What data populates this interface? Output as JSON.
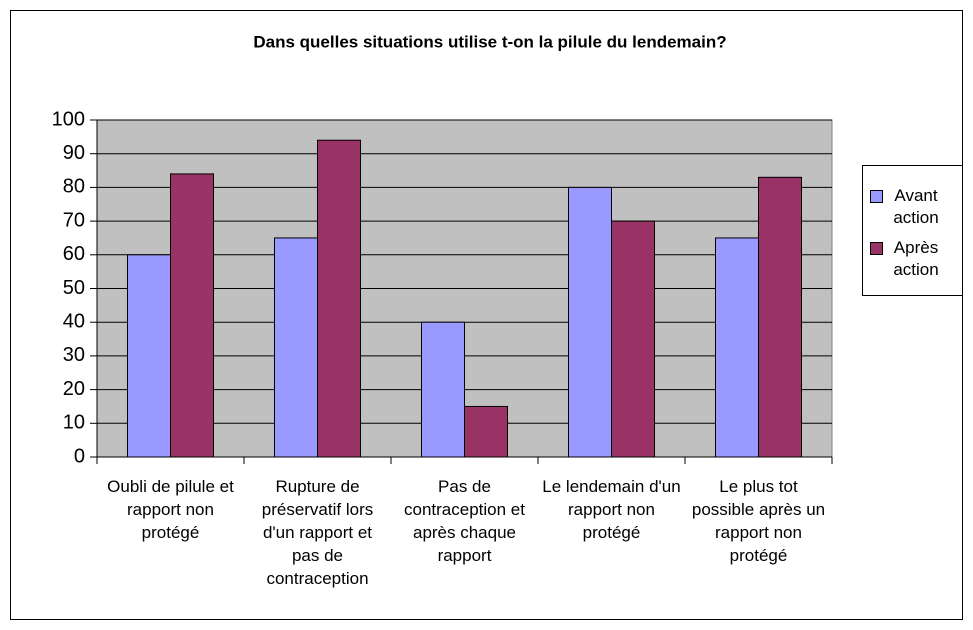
{
  "chart_data": {
    "type": "bar",
    "title": "Dans quelles situations utilise t-on la pilule du lendemain?",
    "categories": [
      "Oubli de pilule et rapport non protégé",
      "Rupture de préservatif lors d'un rapport et pas de contraception",
      "Pas de contraception et après chaque rapport",
      "Le lendemain d'un rapport non protégé",
      "Le plus tot possible après un rapport non protégé"
    ],
    "series": [
      {
        "name": "Avant action",
        "color": "#9999ff",
        "values": [
          60,
          65,
          40,
          80,
          65
        ]
      },
      {
        "name": "Après action",
        "color": "#993366",
        "values": [
          84,
          94,
          15,
          70,
          83
        ]
      }
    ],
    "ylim": [
      0,
      100
    ],
    "yticks": [
      0,
      10,
      20,
      30,
      40,
      50,
      60,
      70,
      80,
      90,
      100
    ],
    "grid": true,
    "legend": "right"
  }
}
